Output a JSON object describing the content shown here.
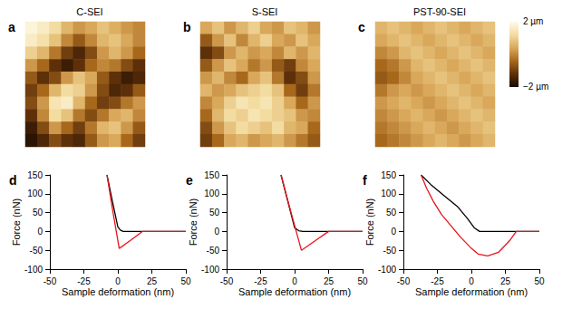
{
  "chart_data": [
    {
      "type": "heatmap",
      "panel_label": "a",
      "title": "C-SEI",
      "tick_labels": false,
      "cells": [
        [
          1.8,
          1.6,
          1.2,
          0.6,
          0.2,
          0.4,
          0.8,
          0.5,
          0.2,
          0.0
        ],
        [
          1.6,
          1.3,
          0.8,
          0.0,
          -0.6,
          0.0,
          0.6,
          0.8,
          0.4,
          0.0
        ],
        [
          1.0,
          0.6,
          -0.2,
          -1.0,
          -1.4,
          -0.8,
          0.2,
          0.6,
          0.2,
          -0.4
        ],
        [
          0.2,
          -0.4,
          -1.2,
          -1.6,
          -1.2,
          -0.4,
          0.0,
          -0.2,
          -0.8,
          -1.2
        ],
        [
          -0.6,
          -1.2,
          -0.8,
          0.2,
          0.8,
          0.4,
          -0.6,
          -1.2,
          -1.6,
          -1.4
        ],
        [
          -1.0,
          -0.4,
          0.6,
          1.2,
          1.0,
          0.2,
          -0.8,
          -1.4,
          -1.2,
          -0.6
        ],
        [
          -0.8,
          0.2,
          1.4,
          1.6,
          0.6,
          -0.4,
          -1.0,
          -0.8,
          -0.2,
          0.2
        ],
        [
          -1.2,
          0.0,
          1.2,
          0.8,
          -0.2,
          -0.8,
          -0.2,
          0.4,
          0.6,
          0.0
        ],
        [
          -1.6,
          -0.8,
          0.2,
          -0.4,
          -1.0,
          -0.2,
          0.6,
          0.8,
          0.2,
          -0.6
        ],
        [
          -1.8,
          -1.4,
          -0.8,
          -1.2,
          -1.4,
          -0.6,
          0.2,
          0.4,
          -0.4,
          -1.0
        ]
      ]
    },
    {
      "type": "heatmap",
      "panel_label": "b",
      "title": "S-SEI",
      "tick_labels": false,
      "cells": [
        [
          0.4,
          0.8,
          0.2,
          0.6,
          1.0,
          0.4,
          0.2,
          0.8,
          0.6,
          0.2
        ],
        [
          -0.6,
          0.2,
          0.8,
          0.0,
          0.6,
          1.0,
          0.4,
          0.2,
          0.8,
          0.4
        ],
        [
          -1.2,
          -0.8,
          0.2,
          0.6,
          0.2,
          0.4,
          0.0,
          0.6,
          0.2,
          0.6
        ],
        [
          -0.6,
          0.2,
          0.8,
          0.4,
          -0.2,
          0.2,
          -0.6,
          -1.0,
          0.0,
          0.4
        ],
        [
          0.2,
          0.6,
          0.0,
          -0.4,
          0.4,
          0.8,
          -0.2,
          -1.2,
          -0.8,
          0.2
        ],
        [
          0.6,
          0.2,
          0.4,
          0.8,
          1.0,
          1.2,
          0.8,
          -0.4,
          -1.0,
          -0.2
        ],
        [
          0.0,
          0.4,
          1.0,
          1.4,
          1.2,
          1.4,
          1.0,
          0.4,
          -0.4,
          0.2
        ],
        [
          -0.4,
          0.6,
          1.2,
          1.0,
          1.4,
          1.2,
          1.0,
          0.8,
          0.2,
          0.0
        ],
        [
          -0.8,
          0.2,
          0.8,
          1.2,
          1.0,
          0.8,
          1.2,
          0.6,
          0.4,
          -0.4
        ],
        [
          -1.0,
          -0.4,
          0.4,
          0.6,
          0.2,
          0.4,
          0.6,
          0.2,
          -0.2,
          -0.6
        ]
      ]
    },
    {
      "type": "heatmap",
      "panel_label": "c",
      "title": "PST-90-SEI",
      "tick_labels": false,
      "cells": [
        [
          0.6,
          0.8,
          0.6,
          0.4,
          0.6,
          0.8,
          0.6,
          0.4,
          0.6,
          0.8
        ],
        [
          0.4,
          0.6,
          0.8,
          0.6,
          0.4,
          0.6,
          0.8,
          0.6,
          0.4,
          0.6
        ],
        [
          0.0,
          0.2,
          0.6,
          0.8,
          0.6,
          0.4,
          0.6,
          0.8,
          0.6,
          0.4
        ],
        [
          -0.4,
          -0.2,
          0.2,
          0.6,
          0.8,
          0.6,
          0.4,
          0.6,
          0.8,
          0.6
        ],
        [
          -0.6,
          -0.4,
          0.0,
          0.4,
          0.6,
          0.8,
          0.6,
          0.4,
          0.6,
          0.8
        ],
        [
          -0.2,
          0.2,
          0.4,
          0.2,
          0.4,
          0.6,
          0.8,
          0.6,
          0.4,
          0.6
        ],
        [
          0.2,
          0.4,
          0.6,
          0.4,
          0.2,
          0.4,
          0.6,
          0.8,
          0.6,
          0.4
        ],
        [
          0.0,
          0.2,
          0.4,
          0.6,
          0.4,
          0.2,
          0.4,
          0.6,
          0.8,
          0.6
        ],
        [
          -0.2,
          0.0,
          0.2,
          0.4,
          0.6,
          0.4,
          0.2,
          0.4,
          0.6,
          0.8
        ],
        [
          -0.4,
          -0.2,
          0.0,
          0.2,
          0.4,
          0.6,
          0.4,
          0.2,
          0.4,
          0.6
        ]
      ],
      "colorbar": {
        "range": [
          -2,
          2
        ],
        "ticks": [
          {
            "value": 2,
            "label": "2 µm"
          },
          {
            "value": -2,
            "label": "−2 µm"
          }
        ]
      }
    },
    {
      "type": "line",
      "panel_label": "d",
      "x_label": "Sample deformation (nm)",
      "y_label": "Force (nN)",
      "xlim": [
        -50,
        50
      ],
      "xticks": [
        -50,
        -25,
        0,
        25,
        50
      ],
      "ylim": [
        -100,
        150
      ],
      "yticks": [
        -100,
        -50,
        0,
        50,
        100,
        150
      ],
      "series": [
        {
          "color": "#000000",
          "x": [
            -8,
            -4,
            0,
            2,
            4,
            50
          ],
          "values": [
            150,
            80,
            12,
            3,
            0,
            0
          ]
        },
        {
          "color": "#e8141b",
          "x": [
            -8,
            -4,
            1,
            10,
            18,
            50
          ],
          "values": [
            150,
            60,
            -45,
            -22,
            0,
            0
          ]
        }
      ]
    },
    {
      "type": "line",
      "panel_label": "e",
      "x_label": "Sample deformation (nm)",
      "y_label": "Force (nN)",
      "xlim": [
        -50,
        50
      ],
      "xticks": [
        -50,
        -25,
        0,
        25,
        50
      ],
      "ylim": [
        -100,
        150
      ],
      "yticks": [
        -100,
        -50,
        0,
        50,
        100,
        150
      ],
      "series": [
        {
          "color": "#000000",
          "x": [
            -10,
            -5,
            0,
            3,
            6,
            50
          ],
          "values": [
            150,
            80,
            10,
            2,
            0,
            0
          ]
        },
        {
          "color": "#e8141b",
          "x": [
            -10,
            -3,
            5,
            15,
            25,
            50
          ],
          "values": [
            150,
            55,
            -50,
            -25,
            0,
            0
          ]
        }
      ]
    },
    {
      "type": "line",
      "panel_label": "f",
      "x_label": "Sample deformation (nm)",
      "y_label": "Force (nN)",
      "xlim": [
        -50,
        50
      ],
      "xticks": [
        -50,
        -25,
        0,
        25,
        50
      ],
      "ylim": [
        -100,
        150
      ],
      "yticks": [
        -100,
        -50,
        0,
        50,
        100,
        150
      ],
      "series": [
        {
          "color": "#000000",
          "x": [
            -37,
            -30,
            -20,
            -10,
            -3,
            2,
            6,
            50
          ],
          "values": [
            150,
            125,
            95,
            65,
            35,
            10,
            0,
            0
          ]
        },
        {
          "color": "#e8141b",
          "x": [
            -37,
            -33,
            -28,
            -22,
            -15,
            -8,
            0,
            5,
            12,
            20,
            28,
            33,
            50
          ],
          "values": [
            150,
            115,
            80,
            45,
            15,
            -15,
            -45,
            -60,
            -65,
            -55,
            -25,
            0,
            0
          ]
        }
      ]
    }
  ]
}
